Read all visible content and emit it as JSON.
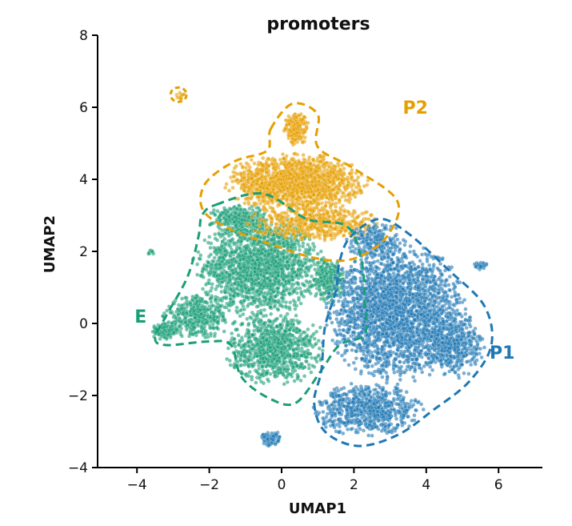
{
  "chart_data": {
    "type": "scatter",
    "title": "promoters",
    "xlabel": "UMAP1",
    "ylabel": "UMAP2",
    "xlim": [
      -5,
      7
    ],
    "ylim": [
      -4,
      8
    ],
    "xticks": [
      -4,
      -2,
      0,
      2,
      4,
      6
    ],
    "yticks": [
      -4,
      -2,
      0,
      2,
      4,
      6,
      8
    ],
    "xtick_labels": [
      "−4",
      "−2",
      "0",
      "2",
      "4",
      "6"
    ],
    "ytick_labels": [
      "−4",
      "−2",
      "0",
      "2",
      "4",
      "6",
      "8"
    ],
    "grid": false,
    "series": [
      {
        "name": "E",
        "color": "#1a9e77",
        "label_pos": [
          -3.9,
          0.2
        ],
        "regions": [
          {
            "cx": -0.6,
            "cy": 1.6,
            "rx": 1.7,
            "ry": 1.4,
            "n": 1700
          },
          {
            "cx": -0.2,
            "cy": -0.7,
            "rx": 1.3,
            "ry": 1.0,
            "n": 900
          },
          {
            "cx": -2.3,
            "cy": 0.2,
            "rx": 1.0,
            "ry": 0.6,
            "n": 400
          },
          {
            "cx": -3.2,
            "cy": -0.2,
            "rx": 0.4,
            "ry": 0.25,
            "n": 120
          },
          {
            "cx": 1.3,
            "cy": 1.2,
            "rx": 0.5,
            "ry": 0.6,
            "n": 250
          },
          {
            "cx": -1.2,
            "cy": 2.9,
            "rx": 0.8,
            "ry": 0.4,
            "n": 300
          },
          {
            "cx": -3.6,
            "cy": 2.0,
            "rx": 0.12,
            "ry": 0.08,
            "n": 8
          }
        ],
        "outline": [
          [
            -1.8,
            3.3
          ],
          [
            -0.5,
            3.6
          ],
          [
            0.7,
            2.9
          ],
          [
            1.8,
            2.7
          ],
          [
            2.2,
            1.8
          ],
          [
            2.3,
            0.6
          ],
          [
            2.3,
            -0.3
          ],
          [
            1.6,
            -0.6
          ],
          [
            1.1,
            -1.3
          ],
          [
            0.4,
            -2.2
          ],
          [
            -0.3,
            -2.1
          ],
          [
            -1.1,
            -1.5
          ],
          [
            -1.4,
            -0.6
          ],
          [
            -2.0,
            -0.5
          ],
          [
            -3.2,
            -0.6
          ],
          [
            -3.5,
            -0.4
          ],
          [
            -3.2,
            0.2
          ],
          [
            -2.6,
            1.3
          ],
          [
            -2.3,
            2.4
          ],
          [
            -2.2,
            3.0
          ]
        ]
      },
      {
        "name": "P2",
        "color": "#e69f00",
        "label_pos": [
          3.7,
          6.0
        ],
        "regions": [
          {
            "cx": 0.4,
            "cy": 3.9,
            "rx": 1.9,
            "ry": 0.8,
            "n": 1400
          },
          {
            "cx": 0.9,
            "cy": 2.8,
            "rx": 1.8,
            "ry": 0.5,
            "n": 500
          },
          {
            "cx": 0.4,
            "cy": 5.4,
            "rx": 0.35,
            "ry": 0.45,
            "n": 200
          },
          {
            "cx": -2.8,
            "cy": 6.3,
            "rx": 0.12,
            "ry": 0.12,
            "n": 12
          }
        ],
        "outline": [
          [
            -0.3,
            5.4
          ],
          [
            0.3,
            6.1
          ],
          [
            1.0,
            5.8
          ],
          [
            1.0,
            4.9
          ],
          [
            2.0,
            4.3
          ],
          [
            3.2,
            3.4
          ],
          [
            2.9,
            2.4
          ],
          [
            2.0,
            1.8
          ],
          [
            1.0,
            1.8
          ],
          [
            -0.3,
            2.2
          ],
          [
            -1.6,
            2.7
          ],
          [
            -2.2,
            3.2
          ],
          [
            -2.1,
            3.9
          ],
          [
            -1.3,
            4.5
          ],
          [
            -0.4,
            4.8
          ]
        ]
      },
      {
        "name": "P1",
        "color": "#1f78b4",
        "label_pos": [
          6.1,
          -0.8
        ],
        "regions": [
          {
            "cx": 3.2,
            "cy": 0.3,
            "rx": 1.9,
            "ry": 1.9,
            "n": 2400
          },
          {
            "cx": 2.4,
            "cy": -2.4,
            "rx": 1.5,
            "ry": 0.7,
            "n": 700
          },
          {
            "cx": 4.8,
            "cy": -0.6,
            "rx": 0.8,
            "ry": 0.9,
            "n": 400
          },
          {
            "cx": 2.6,
            "cy": 2.3,
            "rx": 0.8,
            "ry": 0.5,
            "n": 200
          },
          {
            "cx": 5.5,
            "cy": 1.6,
            "rx": 0.2,
            "ry": 0.12,
            "n": 30
          },
          {
            "cx": -0.3,
            "cy": -3.2,
            "rx": 0.3,
            "ry": 0.22,
            "n": 90
          }
        ],
        "outline": [
          [
            1.9,
            2.4
          ],
          [
            2.7,
            2.9
          ],
          [
            3.5,
            2.5
          ],
          [
            4.6,
            1.5
          ],
          [
            5.6,
            0.5
          ],
          [
            5.8,
            -0.6
          ],
          [
            5.2,
            -1.6
          ],
          [
            4.2,
            -2.4
          ],
          [
            3.2,
            -3.1
          ],
          [
            2.1,
            -3.4
          ],
          [
            1.2,
            -3.0
          ],
          [
            0.9,
            -2.2
          ],
          [
            1.1,
            -1.3
          ],
          [
            1.2,
            -0.1
          ],
          [
            1.5,
            0.9
          ],
          [
            1.6,
            1.7
          ]
        ]
      }
    ],
    "extra_markers": [
      {
        "x": -2.85,
        "y": 6.35,
        "rx": 0.22,
        "ry": 0.2,
        "color": "#e69f00"
      }
    ]
  }
}
